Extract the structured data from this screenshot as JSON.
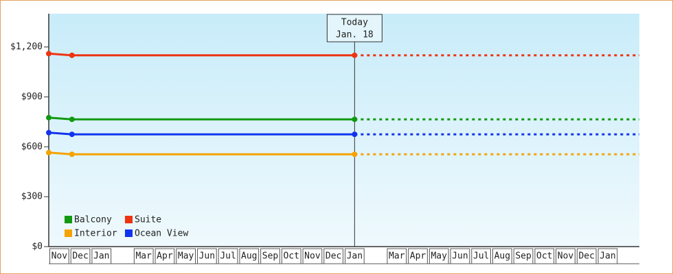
{
  "chart_data": {
    "type": "line",
    "categories": [
      "Nov",
      "Dec",
      "Jan",
      null,
      "Mar",
      "Apr",
      "May",
      "Jun",
      "Jul",
      "Aug",
      "Sep",
      "Oct",
      "Nov",
      "Dec",
      "Jan",
      null,
      "Mar",
      "Apr",
      "May",
      "Jun",
      "Jul",
      "Aug",
      "Sep",
      "Oct",
      "Nov",
      "Dec",
      "Jan",
      null
    ],
    "x": [
      0,
      1.1,
      14.5
    ],
    "xlim": [
      0,
      28
    ],
    "ylim": [
      0,
      1400
    ],
    "yticks": [
      {
        "value": 0,
        "label": "$0"
      },
      {
        "value": 300,
        "label": "$300"
      },
      {
        "value": 600,
        "label": "$600"
      },
      {
        "value": 900,
        "label": "$900"
      },
      {
        "value": 1200,
        "label": "$1,200"
      }
    ],
    "annotation": {
      "text": [
        "Today",
        "Jan. 18"
      ],
      "x": 14.5
    },
    "series": [
      {
        "name": "Balcony",
        "color": "#119911",
        "values": [
          775,
          765,
          765
        ]
      },
      {
        "name": "Suite",
        "color": "#ee3311",
        "values": [
          1160,
          1150,
          1150
        ]
      },
      {
        "name": "Interior",
        "color": "#f5a300",
        "values": [
          565,
          555,
          555
        ]
      },
      {
        "name": "Ocean View",
        "color": "#1133ee",
        "values": [
          685,
          675,
          675
        ]
      }
    ]
  }
}
